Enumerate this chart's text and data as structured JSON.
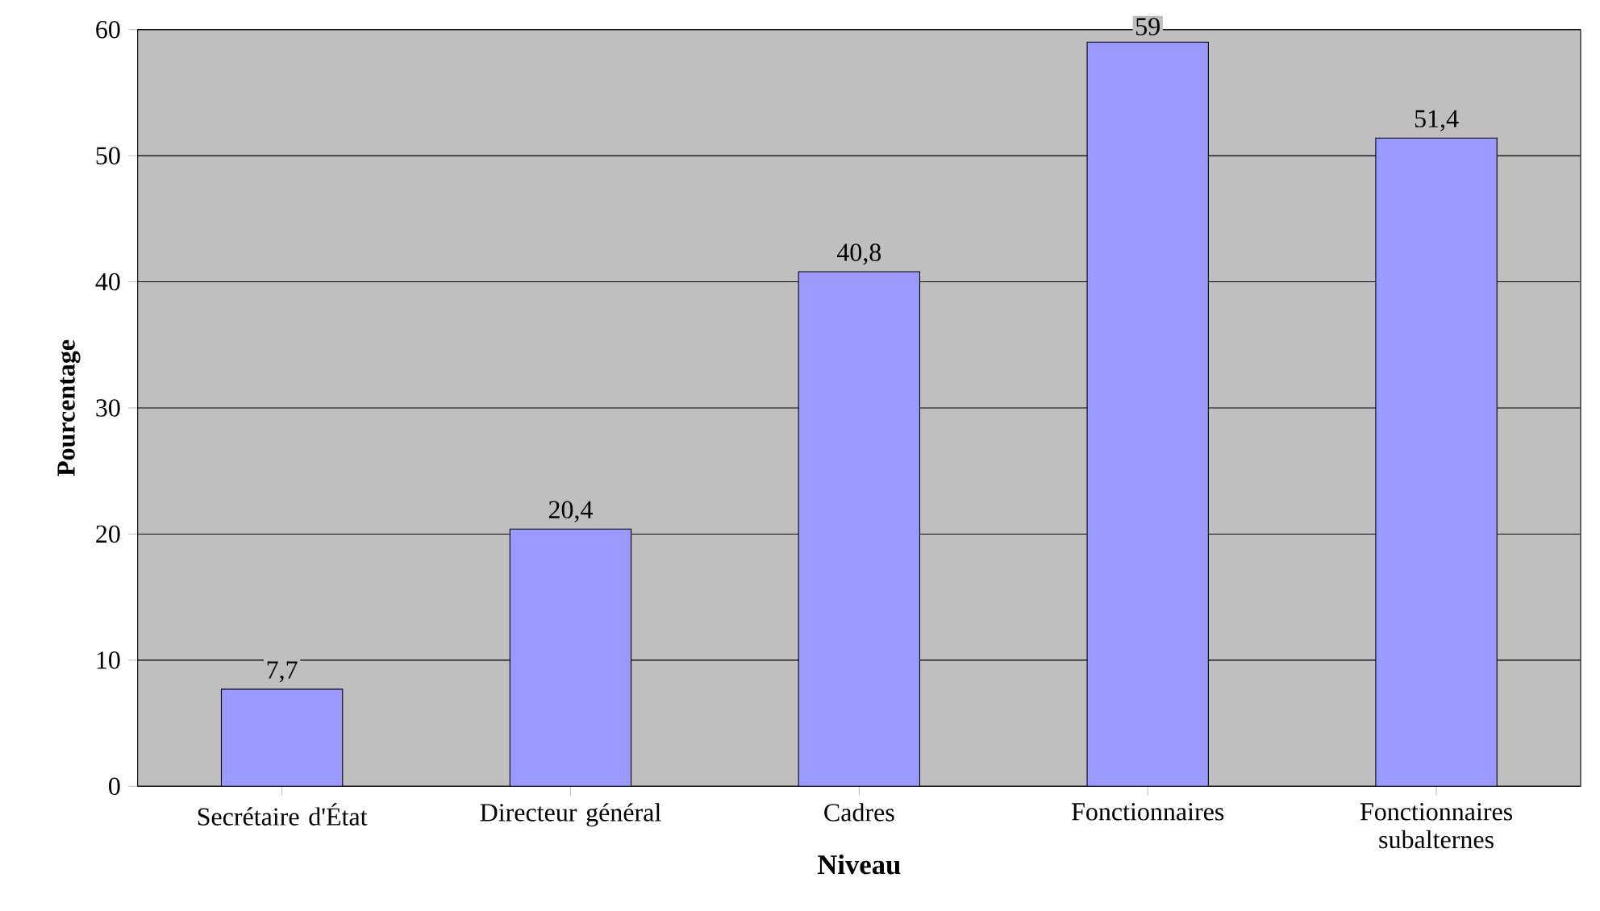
{
  "chart_data": {
    "type": "bar",
    "xlabel": "Niveau",
    "ylabel": "Pourcentage",
    "categories": [
      "Secrétaire d'État",
      "Directeur général",
      "Cadres",
      "Fonctionnaires",
      "Fonctionnaires subalternes"
    ],
    "values": [
      7.7,
      20.4,
      40.8,
      59,
      51.4
    ],
    "value_labels": [
      "7,7",
      "20,4",
      "40,8",
      "59",
      "51,4"
    ],
    "color": "#9999ff",
    "ylim": [
      0,
      60
    ],
    "yticks": [
      0,
      10,
      20,
      30,
      40,
      50,
      60
    ],
    "grid": "y"
  }
}
